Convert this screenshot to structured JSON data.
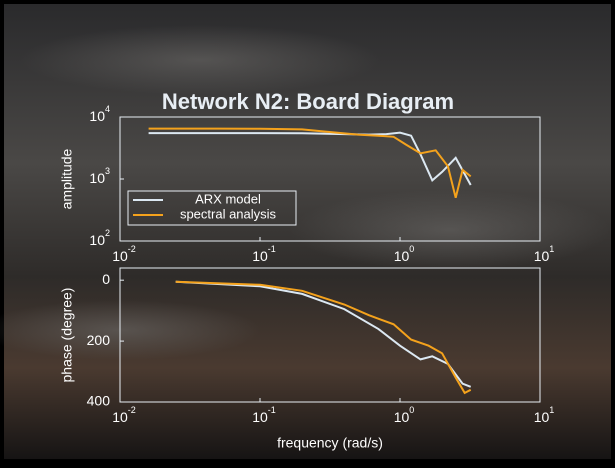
{
  "title": "Network N2: Board Diagram",
  "chart_data": [
    {
      "type": "line",
      "ylabel": "amplitude",
      "xscale": "log",
      "yscale": "log",
      "xlim": [
        0.01,
        10
      ],
      "ylim": [
        100,
        10000
      ],
      "xticks": [
        {
          "value": 0.01,
          "label": "10",
          "exponent": "-2"
        },
        {
          "value": 0.1,
          "label": "10",
          "exponent": "-1"
        },
        {
          "value": 1,
          "label": "10",
          "exponent": "0"
        },
        {
          "value": 10,
          "label": "10",
          "exponent": "1"
        }
      ],
      "yticks": [
        {
          "value": 100,
          "label": "10",
          "exponent": "2"
        },
        {
          "value": 1000,
          "label": "10",
          "exponent": "3"
        },
        {
          "value": 10000,
          "label": "10",
          "exponent": "4"
        }
      ],
      "legend": "lower left",
      "series": [
        {
          "name": "ARX model",
          "color": "#dce8f2",
          "x": [
            0.016,
            0.05,
            0.1,
            0.2,
            0.4,
            0.6,
            0.8,
            1.0,
            1.2,
            1.4,
            1.7,
            2.0,
            2.5,
            3.2
          ],
          "values": [
            5500,
            5500,
            5500,
            5450,
            5300,
            5200,
            5300,
            5600,
            5000,
            2500,
            950,
            1300,
            2200,
            800
          ]
        },
        {
          "name": "spectral analysis",
          "color": "#f4a21c",
          "x": [
            0.016,
            0.05,
            0.1,
            0.2,
            0.3,
            0.5,
            0.7,
            0.9,
            1.1,
            1.4,
            1.8,
            2.2,
            2.5,
            2.8,
            3.2
          ],
          "values": [
            6500,
            6500,
            6450,
            6300,
            5800,
            5200,
            5000,
            4800,
            3600,
            2600,
            2900,
            1600,
            500,
            1400,
            1100
          ]
        }
      ]
    },
    {
      "type": "line",
      "ylabel": "phase (degree)",
      "xlabel": "frequency (rad/s)",
      "xscale": "log",
      "y_reversed": true,
      "xlim": [
        0.01,
        10
      ],
      "ylim": [
        -40,
        400
      ],
      "xticks": [
        {
          "value": 0.01,
          "label": "10",
          "exponent": "-2"
        },
        {
          "value": 0.1,
          "label": "10",
          "exponent": "-1"
        },
        {
          "value": 1,
          "label": "10",
          "exponent": "0"
        },
        {
          "value": 10,
          "label": "10",
          "exponent": "1"
        }
      ],
      "yticks": [
        0,
        200,
        400
      ],
      "series": [
        {
          "name": "ARX model",
          "color": "#dce8f2",
          "x": [
            0.025,
            0.1,
            0.2,
            0.4,
            0.7,
            1.0,
            1.4,
            1.7,
            2.2,
            2.8,
            3.2
          ],
          "values": [
            5,
            20,
            45,
            95,
            160,
            215,
            260,
            250,
            275,
            340,
            350
          ]
        },
        {
          "name": "spectral analysis",
          "color": "#f4a21c",
          "x": [
            0.025,
            0.1,
            0.2,
            0.4,
            0.6,
            0.9,
            1.2,
            1.6,
            2.0,
            2.5,
            2.9,
            3.2
          ],
          "values": [
            5,
            15,
            35,
            80,
            115,
            145,
            195,
            215,
            240,
            320,
            370,
            360
          ]
        }
      ]
    }
  ]
}
